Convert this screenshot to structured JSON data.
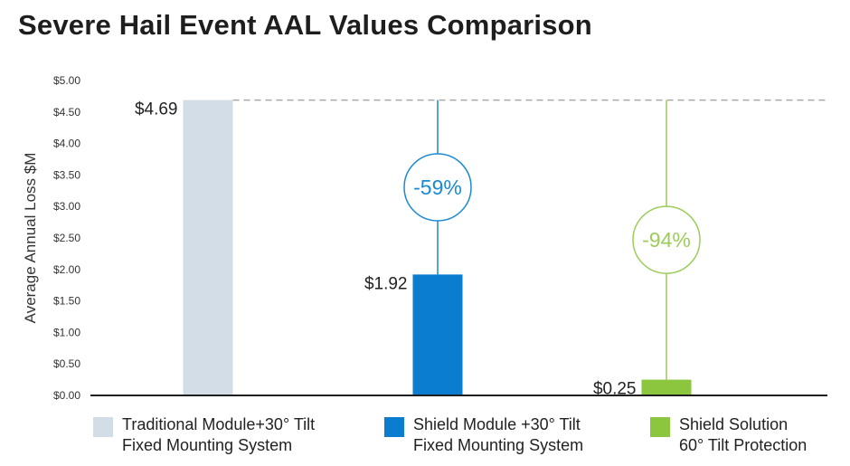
{
  "chart_data": {
    "type": "bar",
    "title": "Severe Hail Event AAL Values Comparison",
    "ylabel": "Average Annual Loss $M",
    "xlabel": "",
    "ylim": [
      0,
      5
    ],
    "yticks": [
      0,
      0.5,
      1,
      1.5,
      2,
      2.5,
      3,
      3.5,
      4,
      4.5,
      5
    ],
    "ytick_labels": [
      "$0.00",
      "$0.50",
      "$1.00",
      "$1.50",
      "$2.00",
      "$2.50",
      "$3.00",
      "$3.50",
      "$4.00",
      "$4.50",
      "$5.00"
    ],
    "reference_line": 4.69,
    "bars": [
      {
        "name": "Traditional Module",
        "value": 4.69,
        "label": "$4.69",
        "color": "#d3dde7"
      },
      {
        "name": "Shield Module",
        "value": 1.92,
        "label": "$1.92",
        "color": "#0a7dd0"
      },
      {
        "name": "Shield Solution",
        "value": 0.25,
        "label": "$0.25",
        "color": "#8cc63f"
      }
    ],
    "reductions": [
      {
        "bar": 1,
        "label": "-59%",
        "color": "#1a8ad4"
      },
      {
        "bar": 2,
        "label": "-94%",
        "color": "#9ccc5a"
      }
    ]
  },
  "legend": [
    {
      "line1": "Traditional Module+30° Tilt",
      "line2": "Fixed Mounting System",
      "color": "#d3dde7"
    },
    {
      "line1": "Shield Module +30° Tilt",
      "line2": "Fixed Mounting System",
      "color": "#0a7dd0"
    },
    {
      "line1": "Shield Solution",
      "line2": "60° Tilt Protection",
      "color": "#8cc63f"
    }
  ]
}
